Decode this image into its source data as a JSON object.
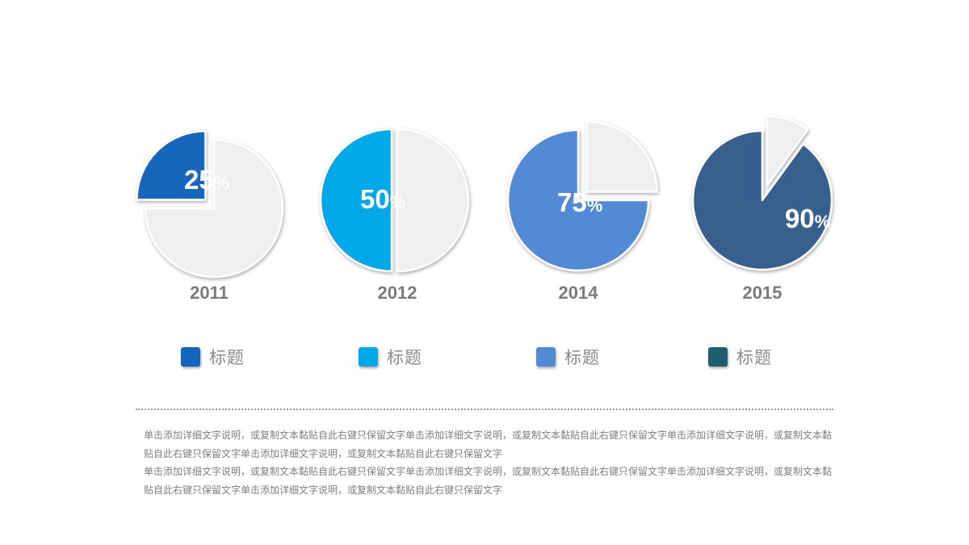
{
  "chart_data": {
    "type": "pie",
    "charts": [
      {
        "year": "2011",
        "percent": 25,
        "label": "25%",
        "color": "#1266bb"
      },
      {
        "year": "2012",
        "percent": 50,
        "label": "50%",
        "color": "#00a8e8"
      },
      {
        "year": "2014",
        "percent": 75,
        "label": "75%",
        "color": "#538ad6"
      },
      {
        "year": "2015",
        "percent": 90,
        "label": "90%",
        "color": "#37608f"
      }
    ],
    "remainder_color": "#efefef"
  },
  "legend": [
    {
      "label": "标题",
      "color": "#1266bb"
    },
    {
      "label": "标题",
      "color": "#00a8e8"
    },
    {
      "label": "标题",
      "color": "#538ad6"
    },
    {
      "label": "标题",
      "color": "#1f5e6e"
    }
  ],
  "description": [
    "单击添加详细文字说明，或复制文本黏贴自此右键只保留文字单击添加详细文字说明，或复制文本黏贴自此右键只保留文字单击添加详细文字说明，或复制文本黏贴自此右键只保留文字单击添加详细文字说明，或复制文本黏贴自此右键只保留文字",
    "单击添加详细文字说明，或复制文本黏贴自此右键只保留文字单击添加详细文字说明，或复制文本黏贴自此右键只保留文字单击添加详细文字说明，或复制文本黏贴自此右键只保留文字单击添加详细文字说明，或复制文本黏贴自此右键只保留文字"
  ]
}
